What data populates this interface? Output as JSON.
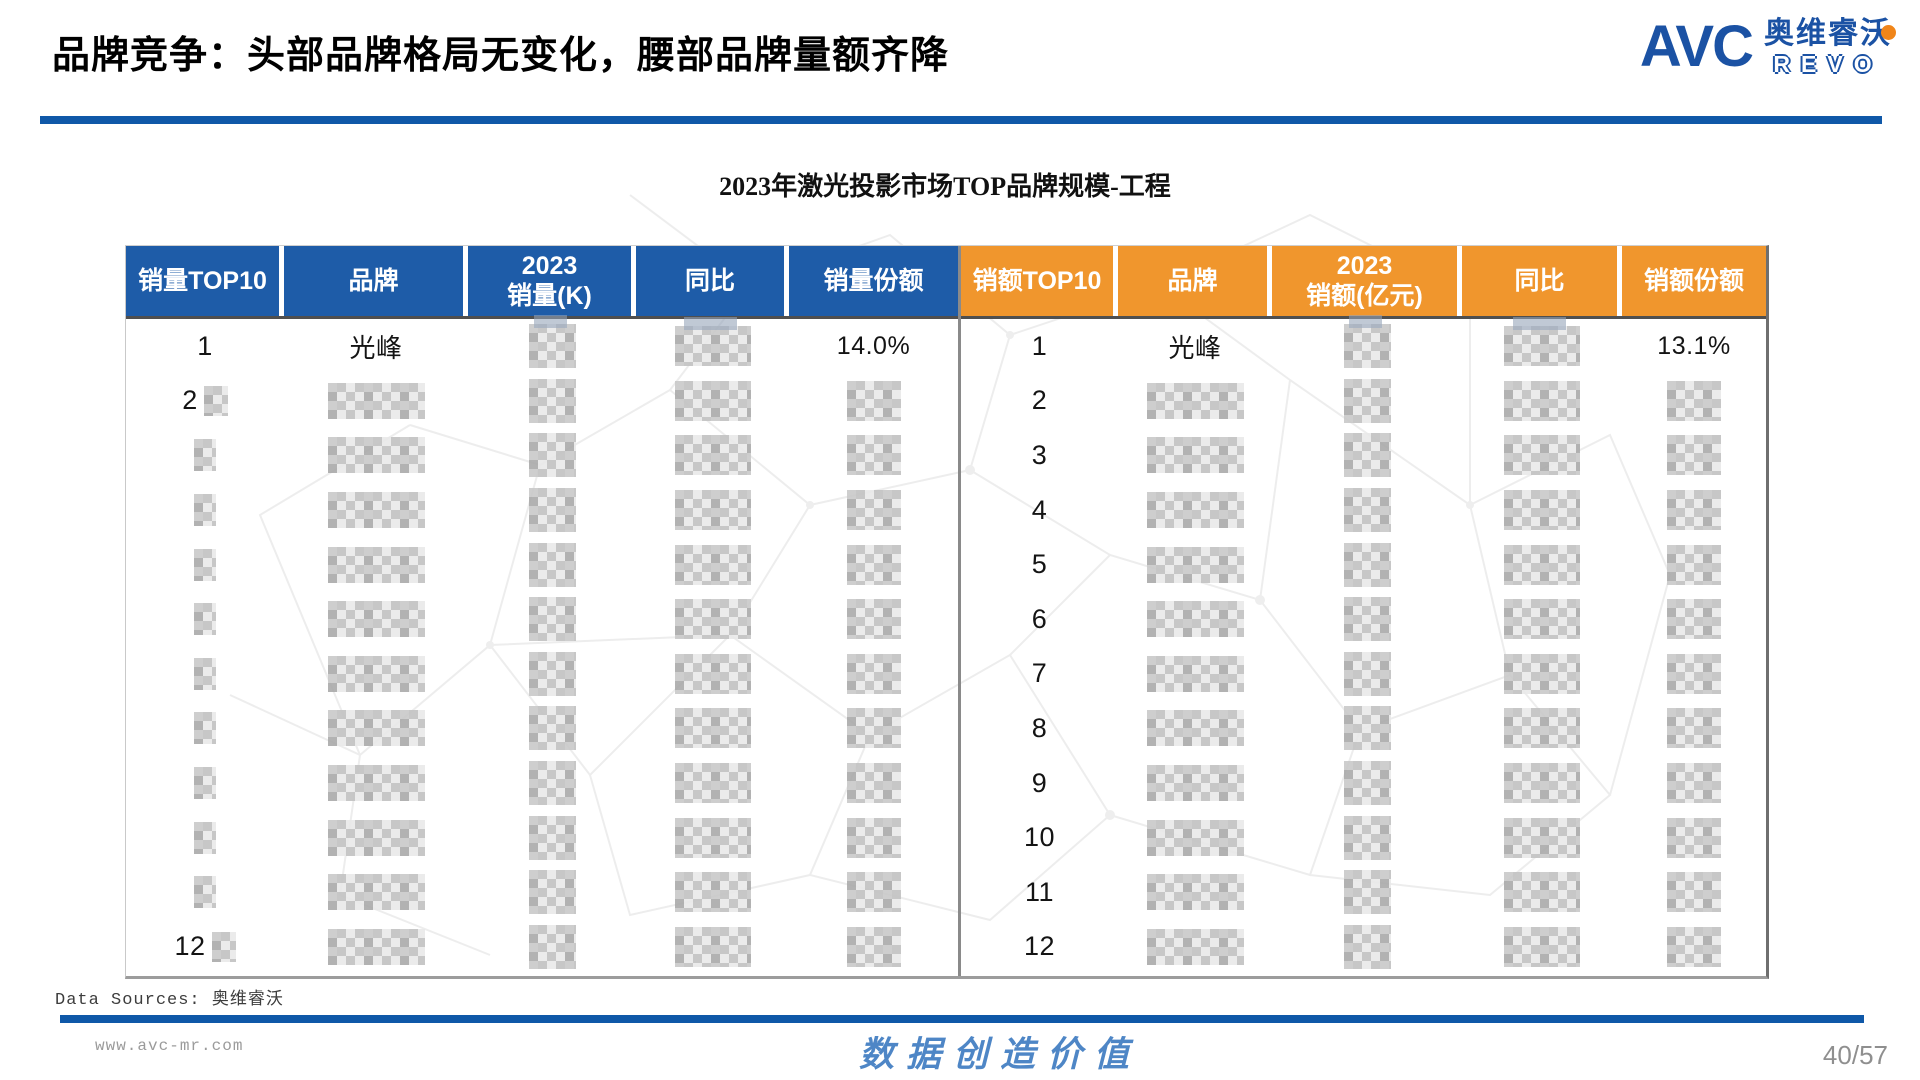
{
  "slide": {
    "title": "品牌竞争：头部品牌格局无变化，腰部品牌量额齐降",
    "chart_title": "2023年激光投影市场TOP品牌规模-工程",
    "data_sources": "Data Sources: 奥维睿沃",
    "footer": {
      "website": "www.avc-mr.com",
      "slogan": "数据创造价值",
      "page": "40/57"
    },
    "logo": {
      "abbr": "AVC",
      "name_cn": "奥维睿沃",
      "name_en": "REVO"
    }
  },
  "colors": {
    "accent_blue": "#0F58A8",
    "header_blue": "#1E5CA8",
    "header_orange": "#F0962D",
    "logo_blue": "#1B52A4",
    "logo_orange": "#F08519",
    "slogan_blue": "#4E86C6",
    "muted_gray": "#8F8F8F"
  },
  "chart_data": {
    "type": "table",
    "title": "2023年激光投影市场TOP品牌规模-工程",
    "note": "除第1名外，其余数据在截图中已打码（马赛克遮盖）",
    "tables": {
      "left": {
        "headers": [
          "销量TOP10",
          "品牌",
          "2023\n销量(K)",
          "同比",
          "销量份额"
        ],
        "rows": [
          [
            {
              "t": "1"
            },
            {
              "t": "光峰"
            },
            {
              "m": 1
            },
            {
              "m": 1
            },
            {
              "t": "14.0%"
            }
          ],
          [
            {
              "t": "2",
              "m": 1
            },
            {
              "m": 1
            },
            {
              "m": 1
            },
            {
              "m": 1
            },
            {
              "m": 1
            }
          ],
          [
            {
              "m": 1
            },
            {
              "m": 1
            },
            {
              "m": 1
            },
            {
              "m": 1
            },
            {
              "m": 1
            }
          ],
          [
            {
              "m": 1
            },
            {
              "m": 1
            },
            {
              "m": 1
            },
            {
              "m": 1
            },
            {
              "m": 1
            }
          ],
          [
            {
              "m": 1
            },
            {
              "m": 1
            },
            {
              "m": 1
            },
            {
              "m": 1
            },
            {
              "m": 1
            }
          ],
          [
            {
              "m": 1
            },
            {
              "m": 1
            },
            {
              "m": 1
            },
            {
              "m": 1
            },
            {
              "m": 1
            }
          ],
          [
            {
              "m": 1
            },
            {
              "m": 1
            },
            {
              "m": 1
            },
            {
              "m": 1
            },
            {
              "m": 1
            }
          ],
          [
            {
              "m": 1
            },
            {
              "m": 1
            },
            {
              "m": 1
            },
            {
              "m": 1
            },
            {
              "m": 1
            }
          ],
          [
            {
              "m": 1
            },
            {
              "m": 1
            },
            {
              "m": 1
            },
            {
              "m": 1
            },
            {
              "m": 1
            }
          ],
          [
            {
              "m": 1
            },
            {
              "m": 1
            },
            {
              "m": 1
            },
            {
              "m": 1
            },
            {
              "m": 1
            }
          ],
          [
            {
              "m": 1
            },
            {
              "m": 1
            },
            {
              "m": 1
            },
            {
              "m": 1
            },
            {
              "m": 1
            }
          ],
          [
            {
              "t": "12",
              "m": 1
            },
            {
              "m": 1
            },
            {
              "m": 1
            },
            {
              "m": 1
            },
            {
              "m": 1
            }
          ]
        ]
      },
      "right": {
        "headers": [
          "销额TOP10",
          "品牌",
          "2023\n销额(亿元)",
          "同比",
          "销额份额"
        ],
        "rows": [
          [
            {
              "t": "1"
            },
            {
              "t": "光峰"
            },
            {
              "m": 1
            },
            {
              "m": 1
            },
            {
              "t": "13.1%"
            }
          ],
          [
            {
              "t": "2"
            },
            {
              "m": 1
            },
            {
              "m": 1
            },
            {
              "m": 1
            },
            {
              "m": 1
            }
          ],
          [
            {
              "t": "3"
            },
            {
              "m": 1
            },
            {
              "m": 1
            },
            {
              "m": 1
            },
            {
              "m": 1
            }
          ],
          [
            {
              "t": "4"
            },
            {
              "m": 1
            },
            {
              "m": 1
            },
            {
              "m": 1
            },
            {
              "m": 1
            }
          ],
          [
            {
              "t": "5"
            },
            {
              "m": 1
            },
            {
              "m": 1
            },
            {
              "m": 1
            },
            {
              "m": 1
            }
          ],
          [
            {
              "t": "6"
            },
            {
              "m": 1
            },
            {
              "m": 1
            },
            {
              "m": 1
            },
            {
              "m": 1
            }
          ],
          [
            {
              "t": "7"
            },
            {
              "m": 1
            },
            {
              "m": 1
            },
            {
              "m": 1
            },
            {
              "m": 1
            }
          ],
          [
            {
              "t": "8"
            },
            {
              "m": 1
            },
            {
              "m": 1
            },
            {
              "m": 1
            },
            {
              "m": 1
            }
          ],
          [
            {
              "t": "9"
            },
            {
              "m": 1
            },
            {
              "m": 1
            },
            {
              "m": 1
            },
            {
              "m": 1
            }
          ],
          [
            {
              "t": "10"
            },
            {
              "m": 1
            },
            {
              "m": 1
            },
            {
              "m": 1
            },
            {
              "m": 1
            }
          ],
          [
            {
              "t": "11"
            },
            {
              "m": 1
            },
            {
              "m": 1
            },
            {
              "m": 1
            },
            {
              "m": 1
            }
          ],
          [
            {
              "t": "12"
            },
            {
              "m": 1
            },
            {
              "m": 1
            },
            {
              "m": 1
            },
            {
              "m": 1
            }
          ]
        ]
      }
    }
  }
}
